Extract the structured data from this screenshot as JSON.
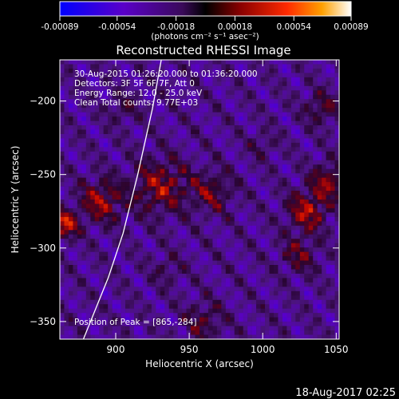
{
  "chart_data": {
    "type": "heatmap",
    "title": "Reconstructed RHESSI Image",
    "xlabel": "Heliocentric X (arcsec)",
    "ylabel": "Heliocentric Y (arcsec)",
    "xlim": [
      862,
      1052
    ],
    "ylim": [
      -362,
      -172
    ],
    "xticks": [
      900,
      950,
      1000,
      1050
    ],
    "yticks": [
      -200,
      -250,
      -300,
      -350
    ],
    "colorbar": {
      "range": [
        -0.00089,
        0.00089
      ],
      "ticks": [
        -0.00089,
        -0.00054,
        -0.00018,
        0.00018,
        0.00054,
        0.00089
      ],
      "tick_labels": [
        "-0.00089",
        "-0.00054",
        "-0.00018",
        "0.00018",
        "0.00054",
        "0.00089"
      ],
      "units": "(photons cm⁻² s⁻¹ asec⁻²)"
    },
    "annotations": [
      "30-Aug-2015 01:26:20.000 to 01:36:20.000",
      "Detectors: 3F 5F 6F 7F, Att 0",
      "Energy Range: 12.0 - 25.0 keV",
      "Clean     Total counts: 9.77E+03",
      "Position of Peak = [865,-284]"
    ],
    "peak": [
      865,
      -284
    ],
    "grid": false,
    "limb_x_at_y": [
      [
        878,
        -362
      ],
      [
        895,
        -320
      ],
      [
        905,
        -290
      ],
      [
        915,
        -250
      ],
      [
        925,
        -205
      ],
      [
        931,
        -172
      ]
    ]
  },
  "footer": {
    "timestamp": "18-Aug-2017 02:25"
  }
}
